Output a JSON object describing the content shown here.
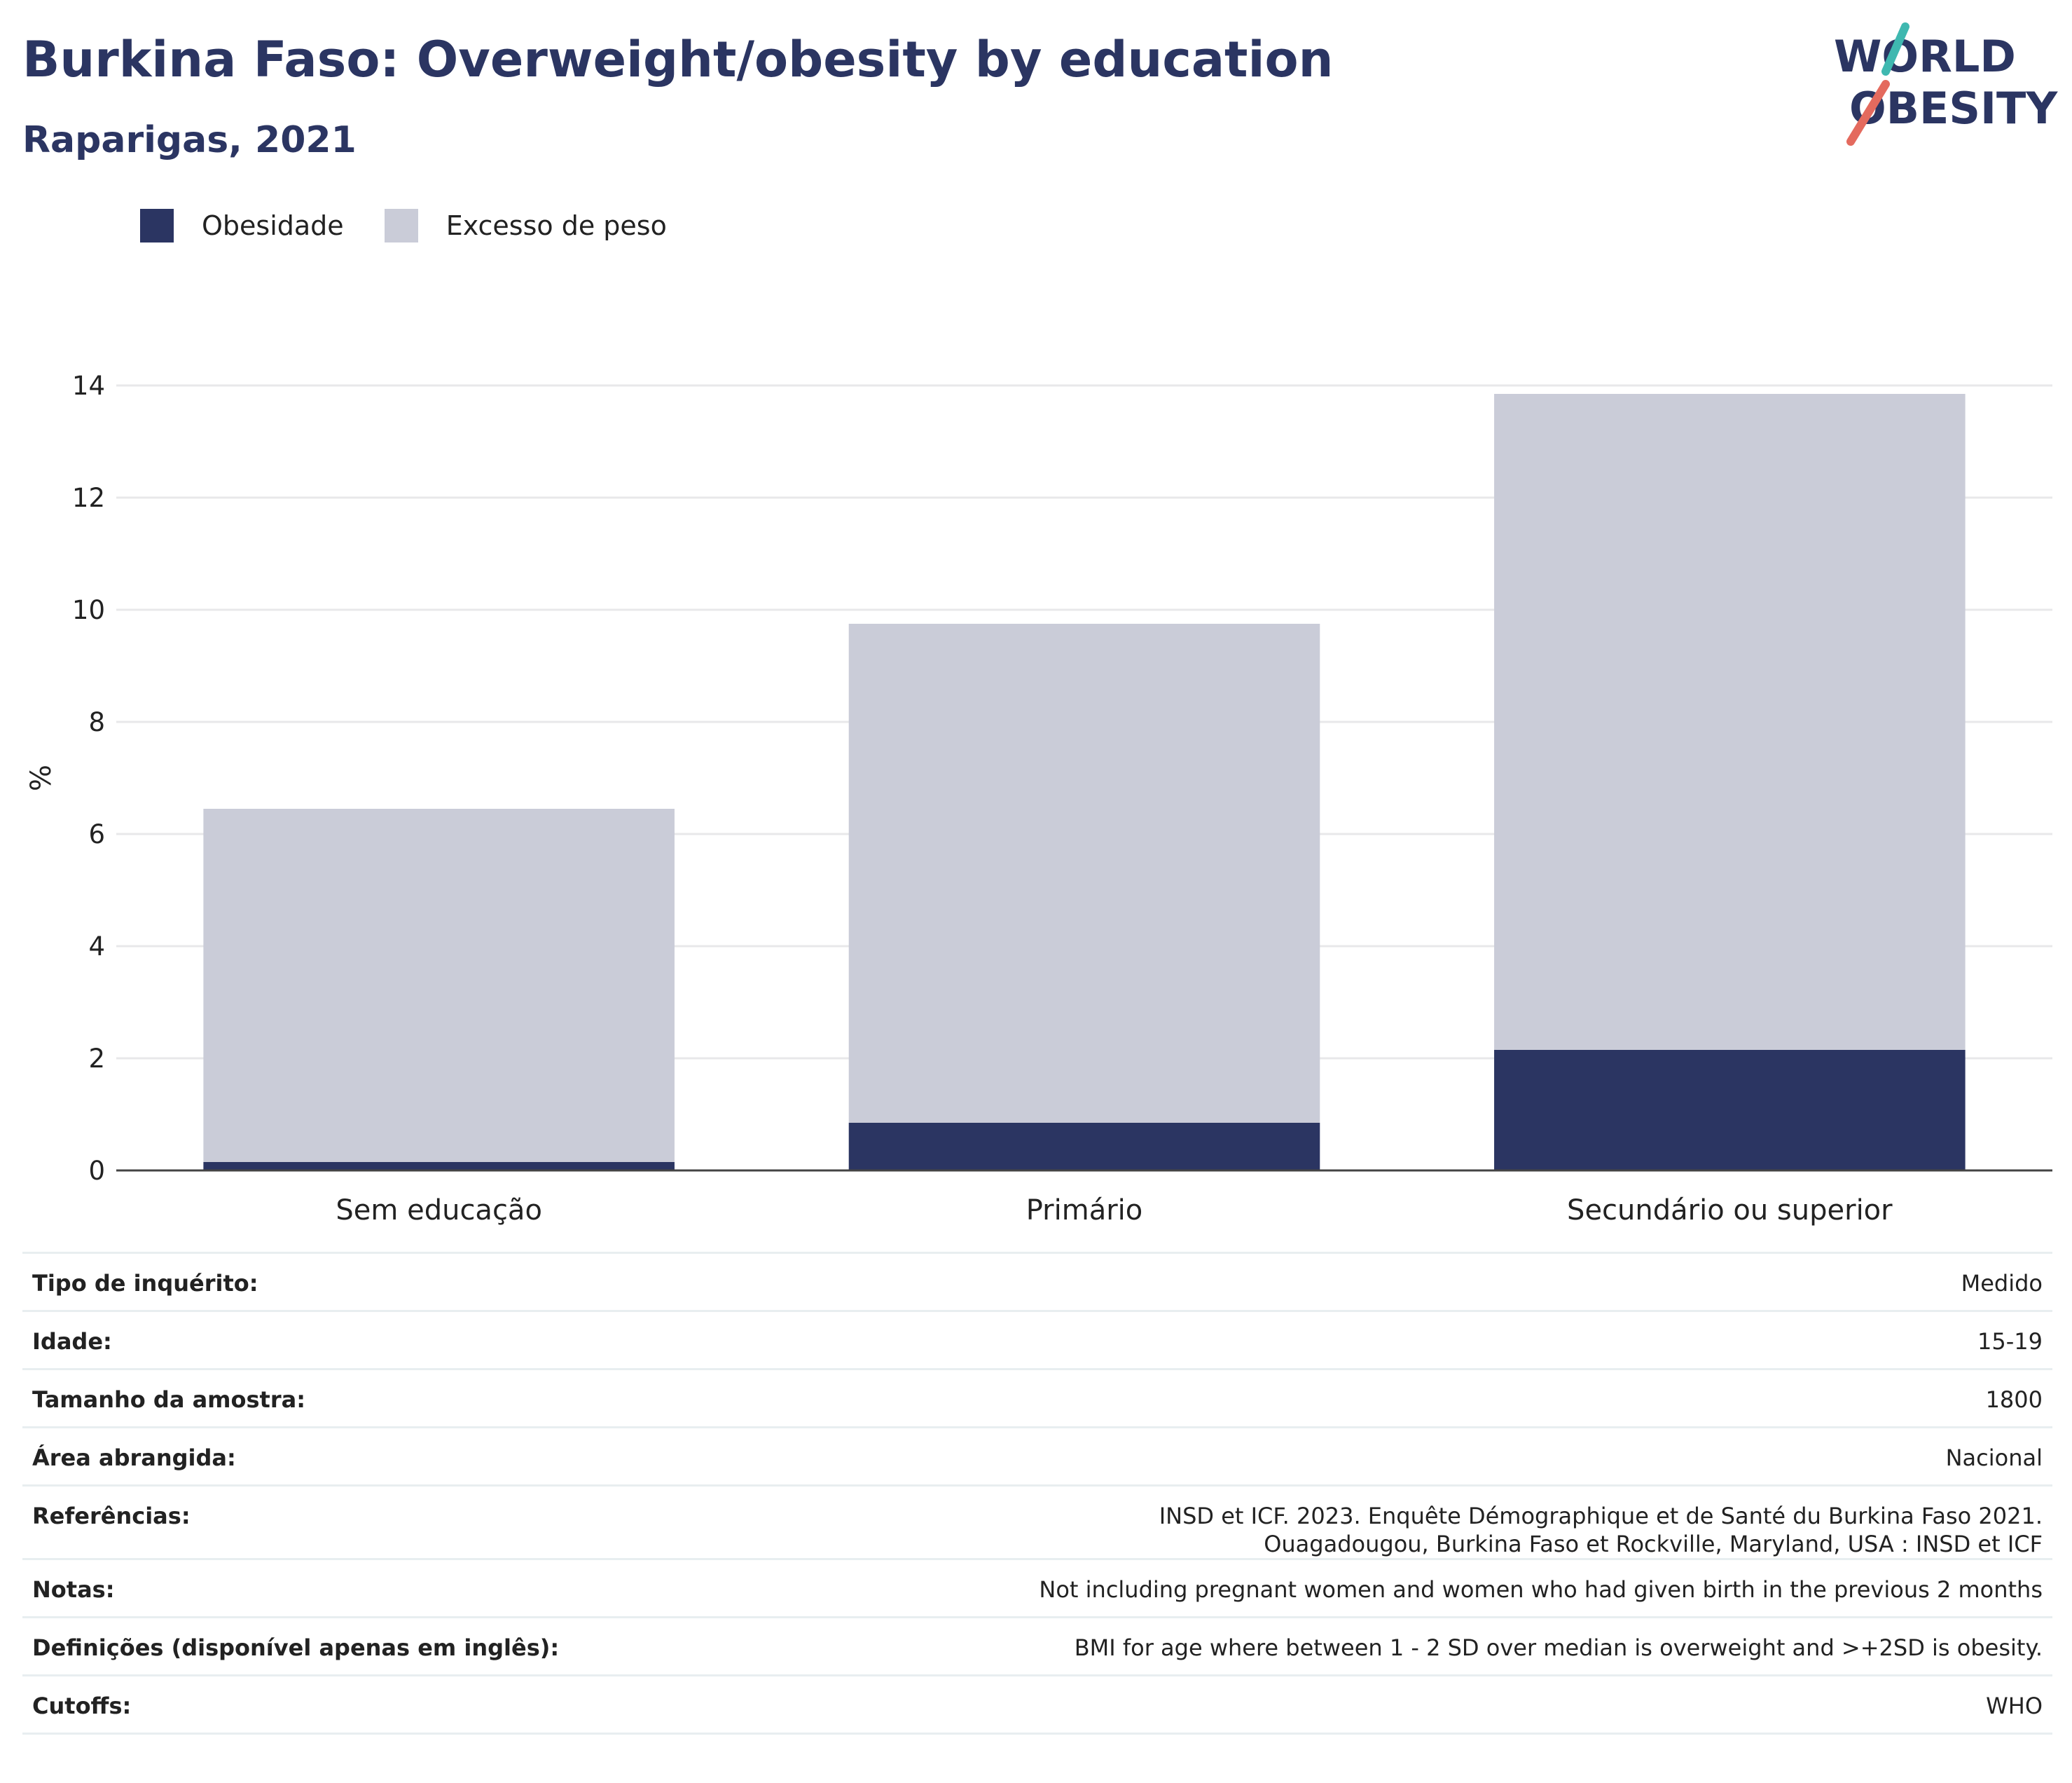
{
  "header": {
    "title": "Burkina Faso: Overweight/obesity by education",
    "subtitle": "Raparigas, 2021"
  },
  "logo": {
    "line1": "WORLD",
    "line2": "OBESITY"
  },
  "colors": {
    "obesity": "#2b3562",
    "overweight": "#caccd8",
    "title": "#2b3562",
    "logo_teal": "#3fb8b0",
    "logo_coral": "#e46a5e"
  },
  "legend": [
    {
      "label": "Obesidade",
      "color": "#2b3562"
    },
    {
      "label": "Excesso de peso",
      "color": "#caccd8"
    }
  ],
  "chart_data": {
    "type": "bar",
    "stacked": true,
    "categories": [
      "Sem educação",
      "Primário",
      "Secundário ou superior"
    ],
    "series": [
      {
        "name": "Obesidade",
        "values": [
          0.15,
          0.85,
          2.15
        ]
      },
      {
        "name": "Excesso de peso",
        "values": [
          6.3,
          8.9,
          11.7
        ]
      }
    ],
    "totals": [
      6.45,
      9.75,
      13.85
    ],
    "ylabel": "%",
    "ylim": [
      0,
      14
    ],
    "yticks": [
      0,
      2,
      4,
      6,
      8,
      10,
      12,
      14
    ],
    "grid": true,
    "legend_position": "top-left"
  },
  "info": [
    {
      "label": "Tipo de inquérito:",
      "value": "Medido"
    },
    {
      "label": "Idade:",
      "value": "15-19"
    },
    {
      "label": "Tamanho da amostra:",
      "value": "1800"
    },
    {
      "label": "Área abrangida:",
      "value": "Nacional"
    },
    {
      "label": "Referências:",
      "value": "INSD et ICF. 2023. Enquête Démographique et de Santé du Burkina Faso 2021. Ouagadougou, Burkina Faso et Rockville, Maryland, USA : INSD et ICF"
    },
    {
      "label": "Notas:",
      "value": "Not including pregnant women and women who had given birth in the previous 2 months"
    },
    {
      "label": "Definições (disponível apenas em inglês):",
      "value": "BMI for age where between 1 - 2 SD over median is overweight and >+2SD is obesity."
    },
    {
      "label": "Cutoffs:",
      "value": "WHO"
    }
  ]
}
